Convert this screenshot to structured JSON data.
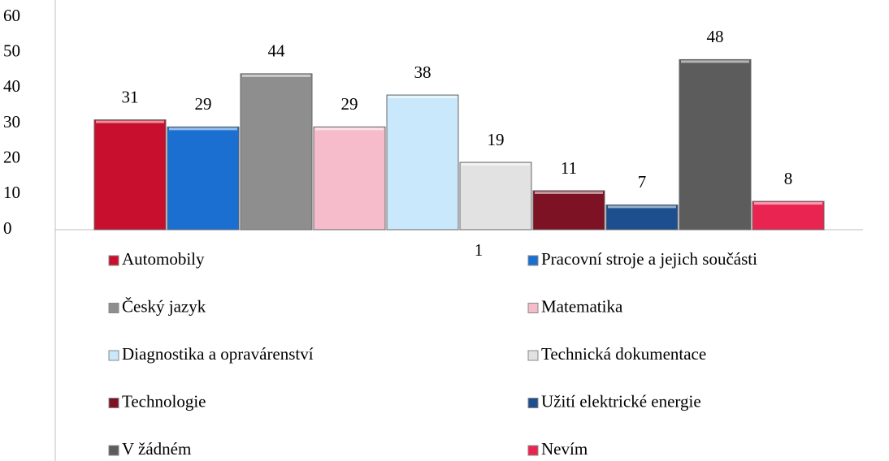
{
  "chart_data": {
    "type": "bar",
    "categories": [
      "1"
    ],
    "series": [
      {
        "name": "Automobily",
        "color": "#c8102e",
        "values": [
          31
        ]
      },
      {
        "name": "Pracovní stroje a jejich součásti",
        "color": "#1a6fd1",
        "values": [
          29
        ]
      },
      {
        "name": "Český jazyk",
        "color": "#8e8e8e",
        "values": [
          44
        ]
      },
      {
        "name": "Matematika",
        "color": "#f6bccb",
        "values": [
          29
        ]
      },
      {
        "name": "Diagnostika a opravárenství",
        "color": "#c9e8fb",
        "values": [
          38
        ]
      },
      {
        "name": "Technická dokumentace",
        "color": "#e2e2e2",
        "values": [
          19
        ]
      },
      {
        "name": "Technologie",
        "color": "#7c1224",
        "values": [
          11
        ]
      },
      {
        "name": "Užití elektrické energie",
        "color": "#1d4f8e",
        "values": [
          7
        ]
      },
      {
        "name": "V žádném",
        "color": "#5c5c5c",
        "values": [
          48
        ]
      },
      {
        "name": "Nevím",
        "color": "#ea2450",
        "values": [
          8
        ]
      }
    ],
    "ylim": [
      0,
      60
    ],
    "yticks": [
      0,
      10,
      20,
      30,
      40,
      50,
      60
    ],
    "grid": false,
    "legend": "bottom"
  }
}
